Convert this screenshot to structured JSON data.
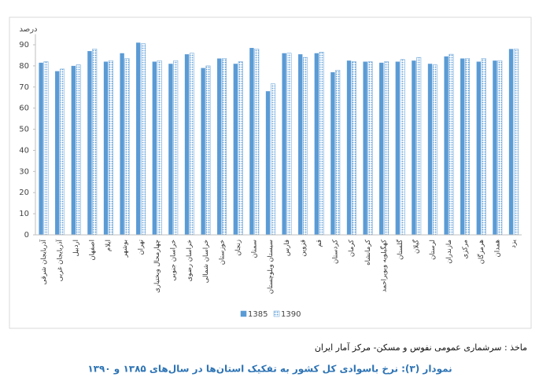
{
  "chart_data": {
    "type": "bar",
    "y_label": "درصد",
    "categories": [
      "آذربایجان شرقی",
      "آذربایجان غربی",
      "اردبیل",
      "اصفهان",
      "ایلام",
      "بوشهر",
      "تهران",
      "چهارمحال وبختیاری",
      "خراسان جنوبی",
      "خراسان رضوی",
      "خراسان شمالی",
      "خوزستان",
      "زنجان",
      "سمنان",
      "سیستان وبلوچستان",
      "فارس",
      "قزوین",
      "قم",
      "کردستان",
      "کرمان",
      "کرمانشاه",
      "کهگیلویه وبویراحمد",
      "گلستان",
      "گیلان",
      "لرستان",
      "مازندران",
      "مرکزی",
      "هرمزگان",
      "همدان",
      "یزد"
    ],
    "series": [
      {
        "name": "1385",
        "color": "#5b9bd5",
        "pattern": "solid",
        "values": [
          81.5,
          77.5,
          80,
          87,
          82,
          86,
          91,
          82,
          81,
          85.5,
          79,
          83.5,
          81,
          88.5,
          68,
          86,
          85.5,
          86,
          77,
          82.5,
          82,
          81.5,
          82,
          82.5,
          81,
          84.5,
          83.5,
          82,
          82.5,
          88
        ]
      },
      {
        "name": "1390",
        "color": "#5b9bd5",
        "pattern": "dotted",
        "values": [
          82,
          78.5,
          80.5,
          88,
          82.5,
          83.5,
          90.5,
          82.5,
          82.5,
          86,
          80,
          83.5,
          82,
          88,
          71.5,
          86,
          84,
          86.5,
          78,
          82,
          82,
          82,
          83,
          84,
          80.5,
          85.5,
          83.5,
          83.5,
          82.5,
          88
        ]
      }
    ],
    "ylim": [
      0,
      95
    ],
    "yticks": [
      0,
      10,
      20,
      30,
      40,
      50,
      60,
      70,
      80,
      90
    ],
    "grid": false,
    "legend": "bottom",
    "source": "ماخذ : سرشماری عمومی نفوس و مسکن- مرکز آمار ایران",
    "caption": "نمودار (۳): نرخ باسوادی کل کشور به تفکیک  استان‌ها در سال‌های ۱۳۸۵ و ۱۳۹۰"
  }
}
